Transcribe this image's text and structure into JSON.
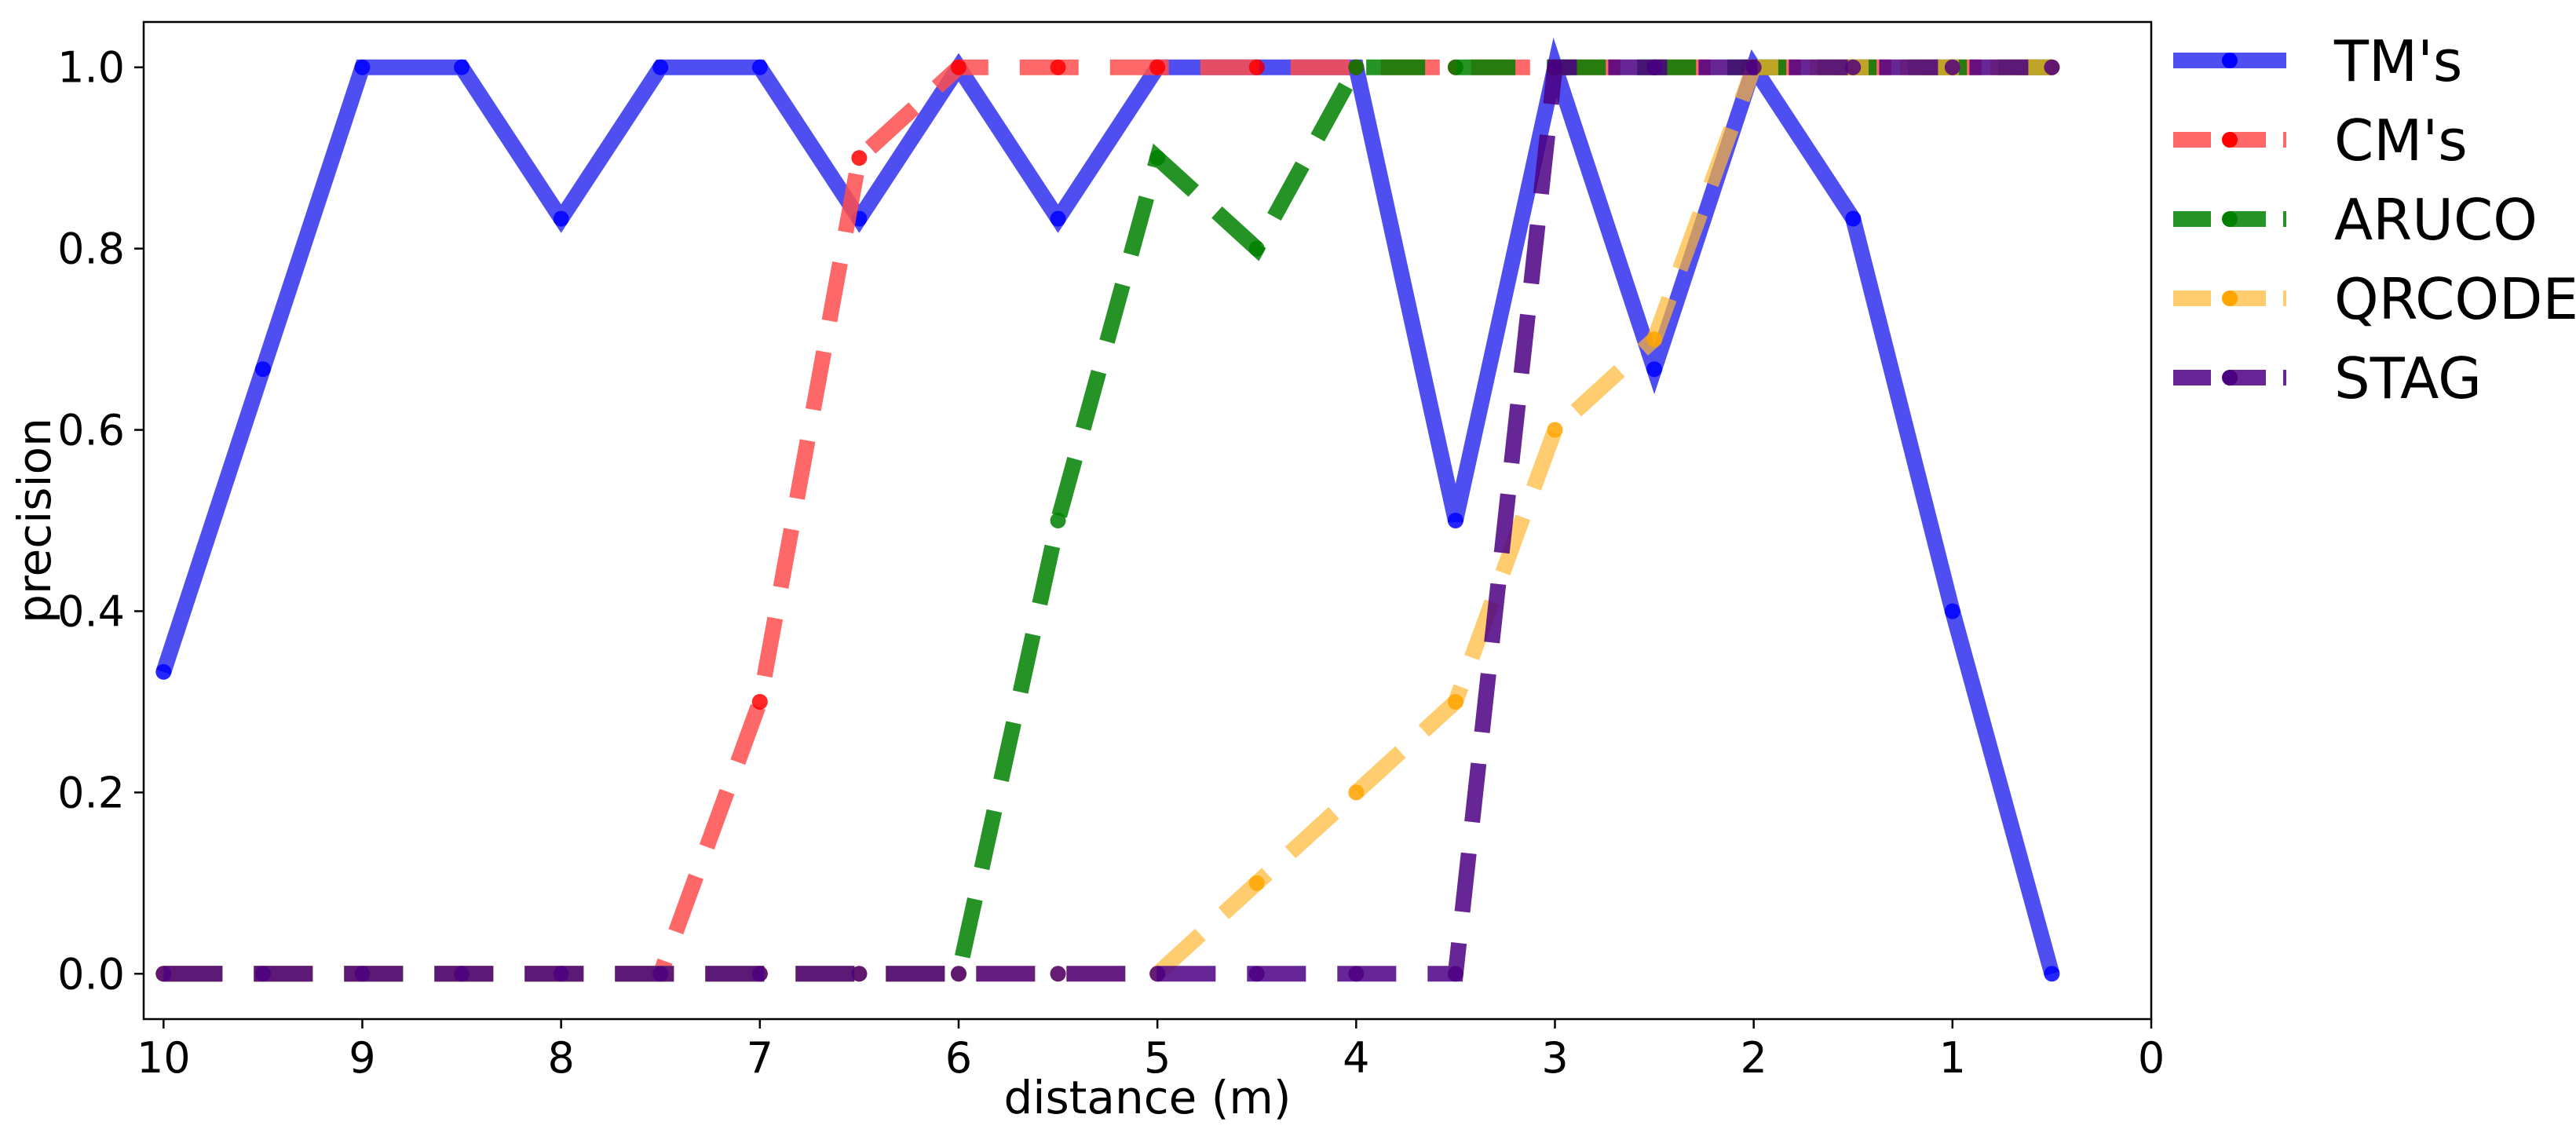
{
  "chart_data": {
    "type": "line",
    "title": "",
    "xlabel": "distance (m)",
    "ylabel": "precision",
    "xlim": [
      10.1,
      0
    ],
    "ylim": [
      -0.05,
      1.05
    ],
    "x_inverted": true,
    "grid": false,
    "legend_position": "outside right, top",
    "xticks": [
      10,
      9,
      8,
      7,
      6,
      5,
      4,
      3,
      2,
      1,
      0
    ],
    "xtick_labels": [
      "10",
      "9",
      "8",
      "7",
      "6",
      "5",
      "4",
      "3",
      "2",
      "1",
      "0"
    ],
    "yticks": [
      0.0,
      0.2,
      0.4,
      0.6,
      0.8,
      1.0
    ],
    "ytick_labels": [
      "0.0",
      "0.2",
      "0.4",
      "0.6",
      "0.8",
      "1.0"
    ],
    "series": [
      {
        "name": "TM's",
        "color": "#2222ee",
        "marker_color": "#0000ff",
        "style": "solid",
        "x": [
          10,
          9.5,
          9,
          8.5,
          8,
          7.5,
          7,
          6.5,
          6,
          5.5,
          5,
          4.5,
          4,
          3.5,
          3,
          2.5,
          2,
          1.5,
          1,
          0.5
        ],
        "y": [
          0.333,
          0.667,
          1.0,
          1.0,
          0.833,
          1.0,
          1.0,
          0.833,
          1.0,
          0.833,
          1.0,
          1.0,
          1.0,
          0.5,
          1.0,
          0.667,
          1.0,
          0.833,
          0.4,
          0.0
        ]
      },
      {
        "name": "CM's",
        "color": "#ff4d4d",
        "marker_color": "#ff0000",
        "style": "dashed",
        "x": [
          10,
          9.5,
          9,
          8.5,
          8,
          7.5,
          7,
          6.5,
          6,
          5.5,
          5,
          4.5,
          4,
          3.5,
          3,
          2.5,
          2,
          1.5,
          1,
          0.5
        ],
        "y": [
          0.0,
          0.0,
          0.0,
          0.0,
          0.0,
          0.0,
          0.3,
          0.9,
          1.0,
          1.0,
          1.0,
          1.0,
          1.0,
          1.0,
          1.0,
          1.0,
          1.0,
          1.0,
          1.0,
          1.0
        ]
      },
      {
        "name": "ARUCO",
        "color": "#008000",
        "marker_color": "#008000",
        "style": "dashed",
        "x": [
          10,
          9.5,
          9,
          8.5,
          8,
          7.5,
          7,
          6.5,
          6,
          5.5,
          5,
          4.5,
          4,
          3.5,
          3,
          2.5,
          2,
          1.5,
          1,
          0.5
        ],
        "y": [
          0.0,
          0.0,
          0.0,
          0.0,
          0.0,
          0.0,
          0.0,
          0.0,
          0.0,
          0.5,
          0.9,
          0.8,
          1.0,
          1.0,
          1.0,
          1.0,
          1.0,
          1.0,
          1.0,
          1.0
        ]
      },
      {
        "name": "QRCODE",
        "color": "#ffb733",
        "marker_color": "#ffa500",
        "style": "dashed",
        "x": [
          10,
          9.5,
          9,
          8.5,
          8,
          7.5,
          7,
          6.5,
          6,
          5.5,
          5,
          4.5,
          4,
          3.5,
          3,
          2.5,
          2,
          1.5,
          1,
          0.5
        ],
        "y": [
          0.0,
          0.0,
          0.0,
          0.0,
          0.0,
          0.0,
          0.0,
          0.0,
          0.0,
          0.0,
          0.0,
          0.1,
          0.2,
          0.3,
          0.6,
          0.7,
          1.0,
          1.0,
          1.0,
          1.0
        ]
      },
      {
        "name": "STAG",
        "color": "#4b0082",
        "marker_color": "#4b0082",
        "style": "dashed",
        "x": [
          10,
          9.5,
          9,
          8.5,
          8,
          7.5,
          7,
          6.5,
          6,
          5.5,
          5,
          4.5,
          4,
          3.5,
          3,
          2.5,
          2,
          1.5,
          1,
          0.5
        ],
        "y": [
          0.0,
          0.0,
          0.0,
          0.0,
          0.0,
          0.0,
          0.0,
          0.0,
          0.0,
          0.0,
          0.0,
          0.0,
          0.0,
          0.0,
          1.0,
          1.0,
          1.0,
          1.0,
          1.0,
          1.0
        ]
      }
    ]
  }
}
